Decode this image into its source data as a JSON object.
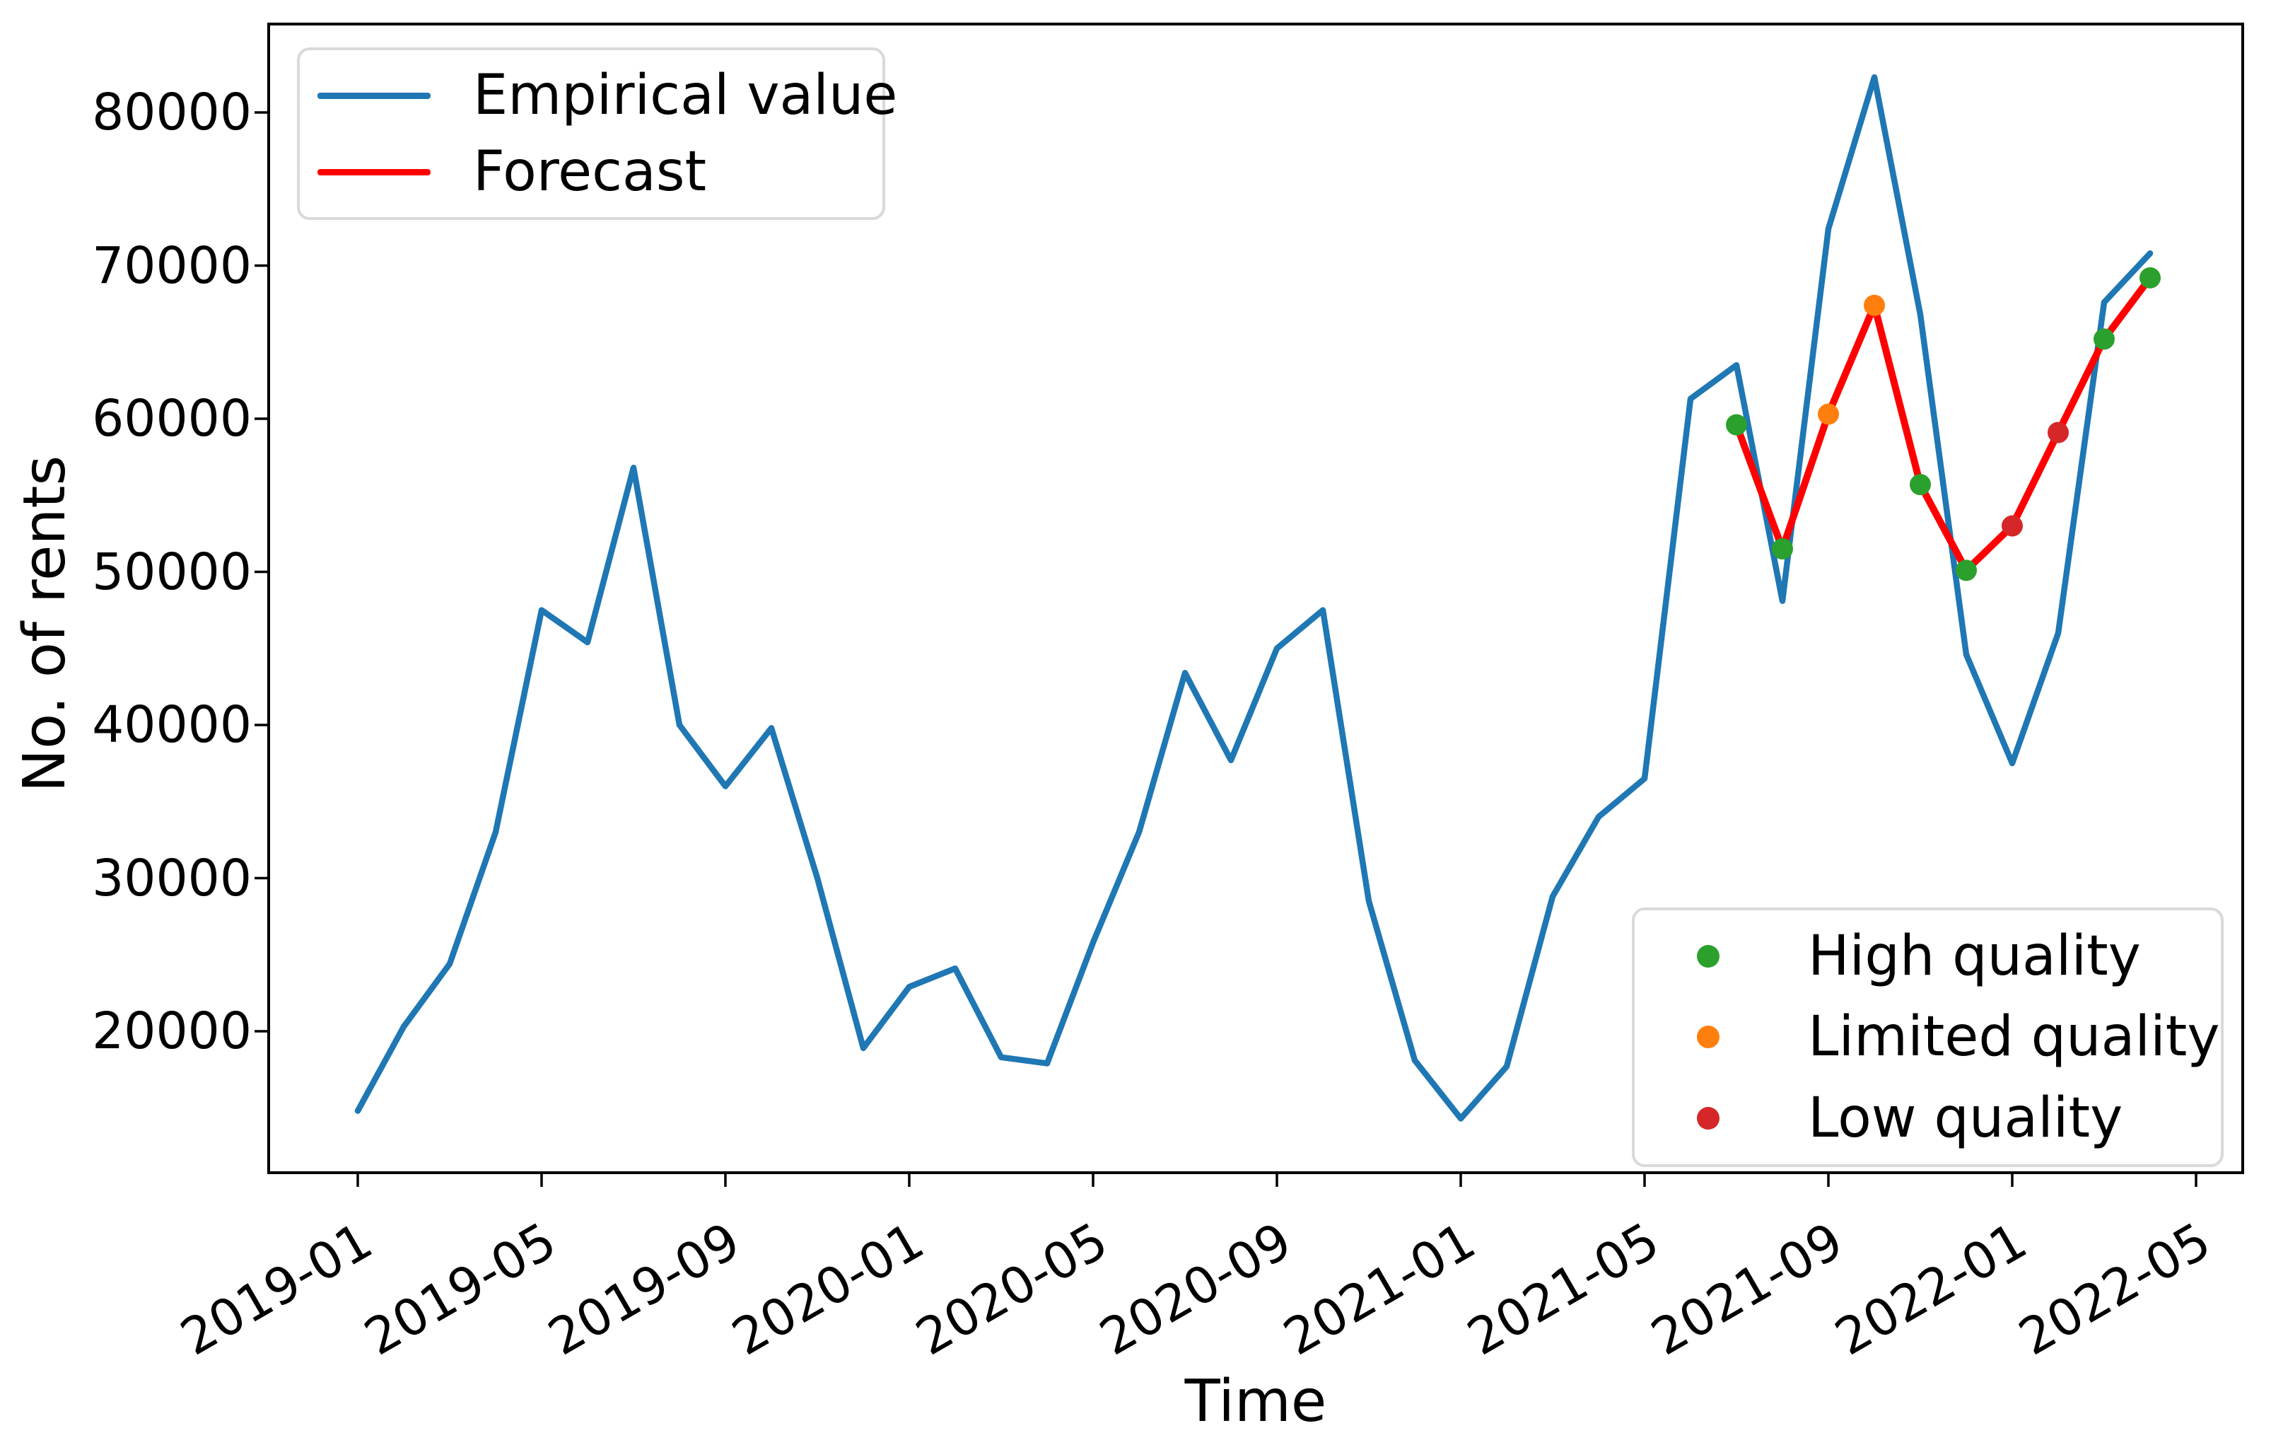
{
  "chart_data": {
    "type": "line",
    "title": "",
    "xlabel": "Time",
    "ylabel": "No. of rents",
    "grid": false,
    "x": [
      "2019-01",
      "2019-02",
      "2019-03",
      "2019-04",
      "2019-05",
      "2019-06",
      "2019-07",
      "2019-08",
      "2019-09",
      "2019-10",
      "2019-11",
      "2019-12",
      "2020-01",
      "2020-02",
      "2020-03",
      "2020-04",
      "2020-05",
      "2020-06",
      "2020-07",
      "2020-08",
      "2020-09",
      "2020-10",
      "2020-11",
      "2020-12",
      "2021-01",
      "2021-02",
      "2021-03",
      "2021-04",
      "2021-05",
      "2021-06",
      "2021-07",
      "2021-08",
      "2021-09",
      "2021-10",
      "2021-11",
      "2021-12",
      "2022-01",
      "2022-02",
      "2022-03",
      "2022-04"
    ],
    "series": [
      {
        "name": "Empirical value",
        "color": "#1f77b4",
        "x_start_index": 0,
        "values": [
          14800,
          20300,
          24400,
          33000,
          47500,
          45400,
          56800,
          40000,
          36000,
          39800,
          30000,
          18900,
          22900,
          24100,
          18300,
          17900,
          25800,
          33000,
          43400,
          37700,
          45000,
          47500,
          28500,
          18100,
          14300,
          17700,
          28800,
          34000,
          36500,
          61300,
          63500,
          48100,
          72400,
          82300,
          66800,
          44600,
          37500,
          46000,
          67600,
          70800
        ]
      },
      {
        "name": "Forecast",
        "color": "#ff0000",
        "x_start_index": 30,
        "values": [
          59600,
          51500,
          60300,
          67400,
          55700,
          50100,
          53000,
          59100,
          65200,
          69200
        ]
      }
    ],
    "scatter_points": [
      {
        "x": "2021-07",
        "value": 59600,
        "quality": "high"
      },
      {
        "x": "2021-08",
        "value": 51500,
        "quality": "high"
      },
      {
        "x": "2021-09",
        "value": 60300,
        "quality": "limited"
      },
      {
        "x": "2021-10",
        "value": 67400,
        "quality": "limited"
      },
      {
        "x": "2021-11",
        "value": 55700,
        "quality": "high"
      },
      {
        "x": "2021-12",
        "value": 50100,
        "quality": "high"
      },
      {
        "x": "2022-01",
        "value": 53000,
        "quality": "low"
      },
      {
        "x": "2022-02",
        "value": 59100,
        "quality": "low"
      },
      {
        "x": "2022-03",
        "value": 65200,
        "quality": "high"
      },
      {
        "x": "2022-04",
        "value": 69200,
        "quality": "high"
      }
    ],
    "quality_colors": {
      "high": "#2ca02c",
      "limited": "#ff7f0e",
      "low": "#d62728"
    },
    "y_ticks": [
      20000,
      30000,
      40000,
      50000,
      60000,
      70000,
      80000
    ],
    "x_ticks": [
      "2019-01",
      "2019-05",
      "2019-09",
      "2020-01",
      "2020-05",
      "2020-09",
      "2021-01",
      "2021-05",
      "2021-09",
      "2022-01",
      "2022-05"
    ],
    "ylim": [
      10900,
      85700
    ],
    "legend_lines_position": "upper left",
    "legend_dots_position": "lower right"
  },
  "legends": {
    "lines": {
      "entries": [
        {
          "label": "Empirical value",
          "color": "#1f77b4"
        },
        {
          "label": "Forecast",
          "color": "#ff0000"
        }
      ]
    },
    "dots": {
      "entries": [
        {
          "label": "High quality",
          "color": "#2ca02c"
        },
        {
          "label": "Limited quality",
          "color": "#ff7f0e"
        },
        {
          "label": "Low quality",
          "color": "#d62728"
        }
      ]
    }
  }
}
